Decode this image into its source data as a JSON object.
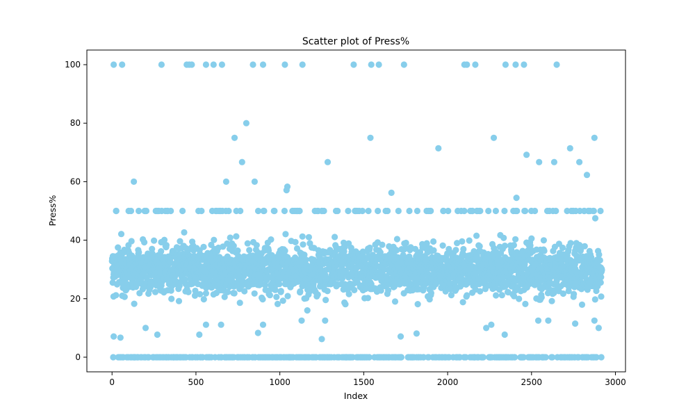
{
  "chart_data": {
    "type": "scatter",
    "title": "Scatter plot of Press%",
    "xlabel": "Index",
    "ylabel": "Press%",
    "xlim": [
      -150,
      3060
    ],
    "ylim": [
      -5,
      105
    ],
    "xticks": [
      0,
      500,
      1000,
      1500,
      2000,
      2500,
      3000
    ],
    "yticks": [
      0,
      20,
      40,
      60,
      80,
      100
    ],
    "grid": false,
    "legend": "none",
    "point_color": "#87CEEB",
    "n_points": 2920,
    "outliers": [
      {
        "x": 10,
        "y": 100
      },
      {
        "x": 60,
        "y": 100
      },
      {
        "x": 295,
        "y": 100
      },
      {
        "x": 445,
        "y": 100
      },
      {
        "x": 460,
        "y": 100
      },
      {
        "x": 475,
        "y": 100
      },
      {
        "x": 560,
        "y": 100
      },
      {
        "x": 605,
        "y": 100
      },
      {
        "x": 655,
        "y": 100
      },
      {
        "x": 840,
        "y": 100
      },
      {
        "x": 900,
        "y": 100
      },
      {
        "x": 1030,
        "y": 100
      },
      {
        "x": 1135,
        "y": 100
      },
      {
        "x": 1440,
        "y": 100
      },
      {
        "x": 1545,
        "y": 100
      },
      {
        "x": 1590,
        "y": 100
      },
      {
        "x": 1740,
        "y": 100
      },
      {
        "x": 2100,
        "y": 100
      },
      {
        "x": 2115,
        "y": 100
      },
      {
        "x": 2165,
        "y": 100
      },
      {
        "x": 2345,
        "y": 100
      },
      {
        "x": 2405,
        "y": 100
      },
      {
        "x": 2455,
        "y": 100
      },
      {
        "x": 2650,
        "y": 100
      },
      {
        "x": 800,
        "y": 80
      },
      {
        "x": 730,
        "y": 75
      },
      {
        "x": 1540,
        "y": 75
      },
      {
        "x": 2275,
        "y": 75
      },
      {
        "x": 2875,
        "y": 75
      },
      {
        "x": 1945,
        "y": 71.4
      },
      {
        "x": 2730,
        "y": 71.4
      },
      {
        "x": 2470,
        "y": 69.2
      },
      {
        "x": 775,
        "y": 66.7
      },
      {
        "x": 1285,
        "y": 66.7
      },
      {
        "x": 2545,
        "y": 66.7
      },
      {
        "x": 2635,
        "y": 66.7
      },
      {
        "x": 2785,
        "y": 66.7
      },
      {
        "x": 2830,
        "y": 62.3
      },
      {
        "x": 130,
        "y": 60
      },
      {
        "x": 680,
        "y": 60
      },
      {
        "x": 850,
        "y": 60
      },
      {
        "x": 1045,
        "y": 58.3
      },
      {
        "x": 1040,
        "y": 57.1
      },
      {
        "x": 1665,
        "y": 56.2
      },
      {
        "x": 2410,
        "y": 54.5
      },
      {
        "x": 2880,
        "y": 47.5
      },
      {
        "x": 1250,
        "y": 6.2
      },
      {
        "x": 1720,
        "y": 7.1
      },
      {
        "x": 50,
        "y": 6.7
      },
      {
        "x": 10,
        "y": 7.1
      },
      {
        "x": 520,
        "y": 7.7
      },
      {
        "x": 2340,
        "y": 7.7
      },
      {
        "x": 270,
        "y": 7.7
      },
      {
        "x": 1815,
        "y": 8.1
      },
      {
        "x": 870,
        "y": 8.3
      },
      {
        "x": 2900,
        "y": 10
      },
      {
        "x": 200,
        "y": 10
      },
      {
        "x": 2230,
        "y": 10
      },
      {
        "x": 900,
        "y": 11.1
      },
      {
        "x": 650,
        "y": 11.1
      },
      {
        "x": 2760,
        "y": 11.5
      },
      {
        "x": 2260,
        "y": 11.1
      },
      {
        "x": 1270,
        "y": 12.5
      },
      {
        "x": 2875,
        "y": 12.5
      },
      {
        "x": 2540,
        "y": 12.5
      },
      {
        "x": 2600,
        "y": 12.5
      },
      {
        "x": 1130,
        "y": 12.5
      },
      {
        "x": 560,
        "y": 11.1
      }
    ]
  }
}
